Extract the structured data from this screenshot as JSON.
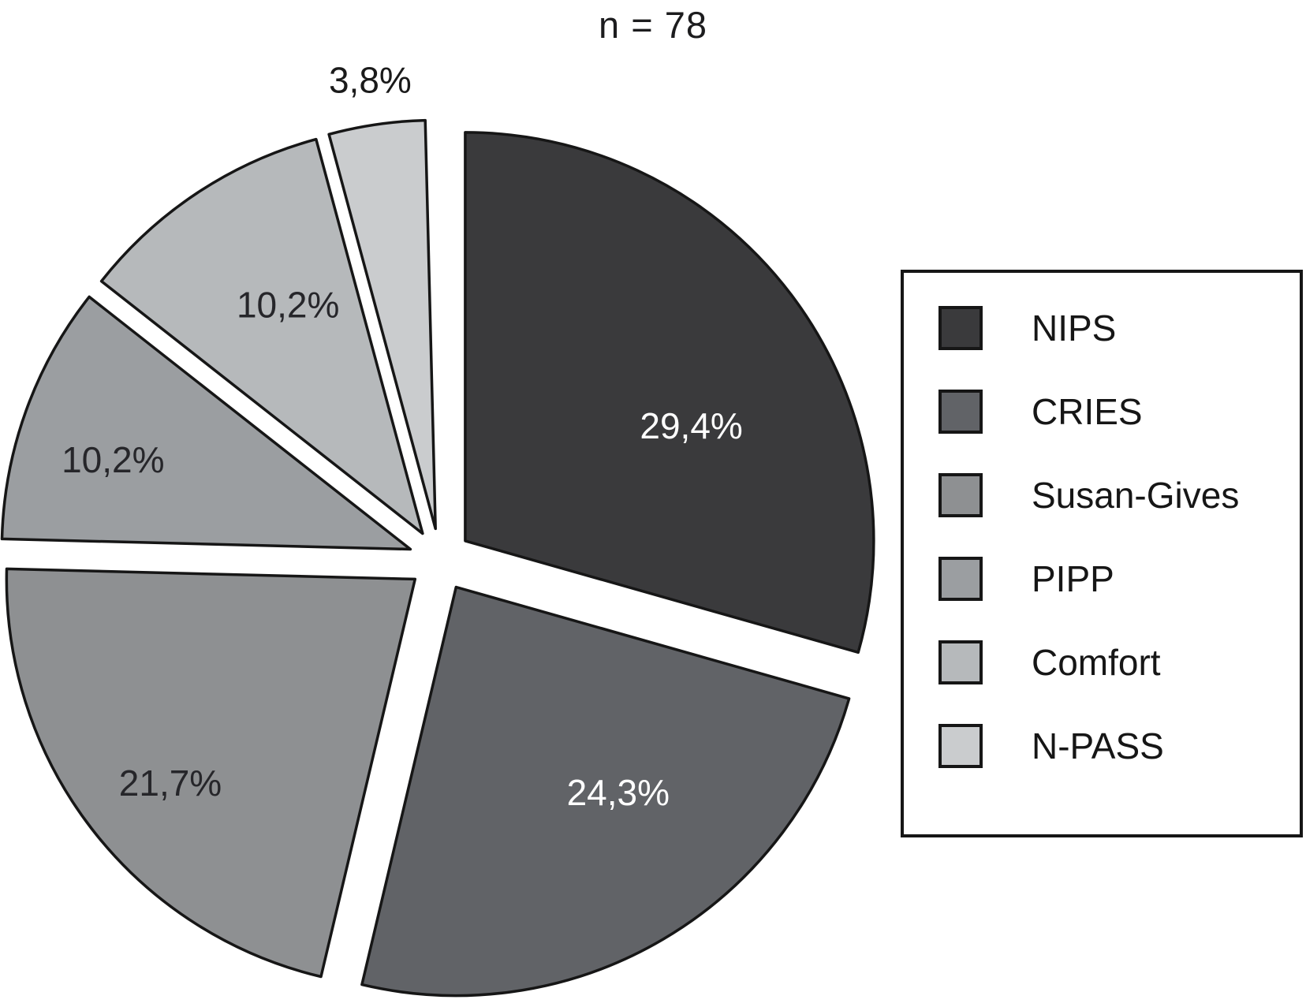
{
  "chart_data": {
    "type": "pie",
    "title": "n = 78",
    "unit": "%",
    "decimal_separator": ",",
    "categories": [
      "NIPS",
      "CRIES",
      "Susan-Gives",
      "PIPP",
      "Comfort",
      "N-PASS"
    ],
    "values": [
      29.4,
      24.3,
      21.7,
      10.2,
      10.2,
      3.8
    ],
    "value_labels": [
      "29,4%",
      "24,3%",
      "21,7%",
      "10,2%",
      "10,2%",
      "3,8%"
    ],
    "colors": [
      "#3a3a3c",
      "#616367",
      "#8e9092",
      "#9b9ea1",
      "#b6b9bb",
      "#caccce"
    ],
    "value_label_colors": [
      "#ffffff",
      "#ffffff",
      "#26262a",
      "#26262a",
      "#26262a",
      "#1a1a1a"
    ],
    "legend_position": "right",
    "layout": {
      "center": [
        558,
        710
      ],
      "radius": 518,
      "explode": 40,
      "start_angle_deg": 0,
      "clockwise": true,
      "stroke": "#161616",
      "stroke_width": 3.5,
      "label_radius_factor": [
        0.62,
        0.64,
        0.78,
        0.76,
        0.65,
        1.11
      ],
      "label_angle_offset_deg": [
        9,
        -7,
        -2,
        -2.8,
        2.7,
        0
      ],
      "label_outside": [
        false,
        false,
        false,
        false,
        false,
        true
      ]
    }
  }
}
